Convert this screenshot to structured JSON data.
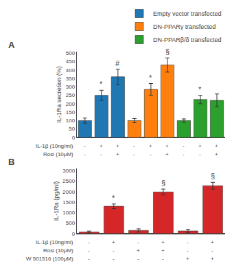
{
  "chart_data": [
    {
      "type": "bar",
      "title": "A",
      "ylabel": "IL-1Ra secretion (%)",
      "categories": [
        [
          "-",
          "-"
        ],
        [
          "+",
          "-"
        ],
        [
          "+",
          "+"
        ],
        [
          "-",
          "-"
        ],
        [
          "+",
          "-"
        ],
        [
          "+",
          "+"
        ],
        [
          "-",
          "-"
        ],
        [
          "+",
          "-"
        ],
        [
          "+",
          "+"
        ]
      ],
      "category_rows": [
        "IL-1β (10ng/ml)",
        "Rosi (10μM)"
      ],
      "series": [
        {
          "name": "Empty vector transfected",
          "values": [
            100,
            250,
            360,
            null,
            null,
            null,
            null,
            null,
            null
          ],
          "errors": [
            15,
            30,
            45,
            null,
            null,
            null,
            null,
            null,
            null
          ]
        },
        {
          "name": "DN-PPARγ transfected",
          "values": [
            null,
            null,
            null,
            100,
            285,
            430,
            null,
            null,
            null
          ],
          "errors": [
            null,
            null,
            null,
            12,
            35,
            42,
            null,
            null,
            null
          ]
        },
        {
          "name": "DN-PPARβ/δ transfected",
          "values": [
            null,
            null,
            null,
            null,
            null,
            null,
            100,
            225,
            220
          ],
          "errors": [
            null,
            null,
            null,
            null,
            null,
            null,
            10,
            25,
            38
          ]
        }
      ],
      "annotations": [
        {
          "x": 1,
          "text": "*"
        },
        {
          "x": 2,
          "text": "#"
        },
        {
          "x": 4,
          "text": "*"
        },
        {
          "x": 5,
          "text": "§"
        },
        {
          "x": 7,
          "text": "*"
        }
      ],
      "ylim": [
        0,
        510
      ],
      "yticks": [
        0,
        50,
        100,
        150,
        200,
        250,
        300,
        350,
        400,
        450,
        500
      ],
      "grid": false,
      "legend": "top right"
    },
    {
      "type": "bar",
      "title": "B",
      "ylabel": "IL-1Ra (pg/ml)",
      "categories": [
        [
          "-",
          "-",
          "-"
        ],
        [
          "+",
          "-",
          "-"
        ],
        [
          "-",
          "+",
          "-"
        ],
        [
          "+",
          "+",
          "-"
        ],
        [
          "-",
          "-",
          "+"
        ],
        [
          "+",
          "-",
          "+"
        ]
      ],
      "category_rows": [
        "IL-1β (10ng/ml)",
        "Rosi (10μM)",
        "W 501516 (100μM)"
      ],
      "series": [
        {
          "values": [
            75,
            1300,
            150,
            1980,
            125,
            2280
          ],
          "errors": [
            45,
            110,
            75,
            140,
            75,
            160
          ]
        }
      ],
      "annotations": [
        {
          "x": 1,
          "text": "*"
        },
        {
          "x": 3,
          "text": "§"
        },
        {
          "x": 5,
          "text": "§"
        }
      ],
      "ylim": [
        0,
        3100
      ],
      "yticks": [
        0,
        500,
        1000,
        1500,
        2000,
        2500,
        3000
      ],
      "grid": false
    }
  ]
}
